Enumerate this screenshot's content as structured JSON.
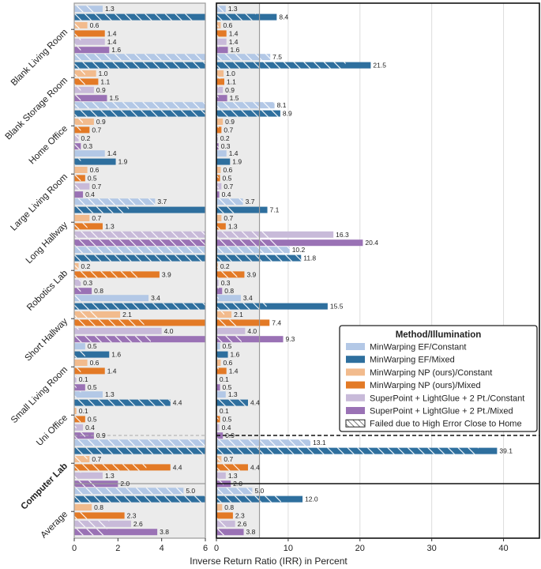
{
  "chart_data": {
    "type": "bar",
    "orientation": "horizontal",
    "xlabel": "Inverse Return Ratio (IRR) in Percent",
    "panels": [
      {
        "name": "zoom",
        "xlim": [
          0,
          6
        ],
        "ticks": [
          0,
          2,
          4,
          6
        ]
      },
      {
        "name": "full",
        "xlim": [
          0,
          45
        ],
        "ticks": [
          0,
          10,
          20,
          30,
          40
        ]
      }
    ],
    "categories": [
      "Blank Living Room",
      "Blank Storage Room",
      "Home Office",
      "Large Living Room",
      "Long Hallway",
      "Robotics Lab",
      "Short Hallway",
      "Small Living Room",
      "Uni Office",
      "Computer Lab",
      "Average"
    ],
    "bold_categories": [
      "Computer Lab"
    ],
    "series": [
      {
        "name": "MinWarping EF/Constant",
        "color": "#b3c8e6",
        "values": [
          1.3,
          7.5,
          8.1,
          1.4,
          3.7,
          10.2,
          3.4,
          0.5,
          1.3,
          13.1,
          5.0
        ],
        "failed": [
          1.0,
          7.5,
          8.1,
          0,
          3.7,
          10.2,
          0.3,
          0,
          0.3,
          13.1,
          5.0
        ]
      },
      {
        "name": "MinWarping EF/Mixed",
        "color": "#2e6f9e",
        "values": [
          8.4,
          21.5,
          8.9,
          1.9,
          7.1,
          11.8,
          15.5,
          1.6,
          4.4,
          39.1,
          12.0
        ],
        "failed": [
          5.5,
          18.0,
          8.9,
          0.3,
          2.5,
          11.8,
          7.0,
          0.5,
          4.4,
          36.5,
          9.0
        ]
      },
      {
        "name": "MinWarping NP (ours)/Constant",
        "color": "#f2bb8d",
        "values": [
          0.6,
          1.0,
          0.9,
          0.6,
          0.7,
          0.2,
          2.1,
          0.6,
          0.1,
          0.7,
          0.8
        ],
        "failed": [
          0.3,
          0.5,
          0.4,
          0,
          0,
          0.2,
          1.1,
          0,
          0.1,
          0.6,
          0
        ]
      },
      {
        "name": "MinWarping NP (ours)/Mixed",
        "color": "#e37a26",
        "values": [
          1.4,
          1.1,
          0.7,
          0.5,
          1.3,
          3.9,
          7.4,
          1.4,
          0.5,
          4.4,
          2.3
        ],
        "failed": [
          0.3,
          0.5,
          0.3,
          0.3,
          0.6,
          2.9,
          3.2,
          0.3,
          0.3,
          3.3,
          0.6
        ]
      },
      {
        "name": "SuperPoint + LightGlue + 2 Pt./Constant",
        "color": "#c8bad9",
        "values": [
          1.4,
          0.9,
          0.2,
          0.7,
          16.3,
          0.3,
          4.0,
          0.1,
          0.4,
          1.3,
          2.6
        ],
        "failed": [
          0.3,
          0.3,
          0.2,
          0.3,
          7.5,
          0.3,
          0.2,
          0.1,
          0.1,
          0.3,
          1.6
        ]
      },
      {
        "name": "SuperPoint + LightGlue + 2 Pt./Mixed",
        "color": "#9a72b5",
        "values": [
          1.6,
          1.5,
          0.3,
          0.4,
          20.4,
          0.8,
          9.3,
          0.5,
          0.9,
          2.0,
          3.8
        ],
        "failed": [
          0.3,
          0.3,
          0.3,
          0,
          8.5,
          0.3,
          3.5,
          0.1,
          0.5,
          1.0,
          1.5
        ]
      }
    ],
    "legend": {
      "title": "Method/Illumination",
      "position": "right",
      "hatch_entry": "Failed due to High Error Close to Home"
    }
  }
}
